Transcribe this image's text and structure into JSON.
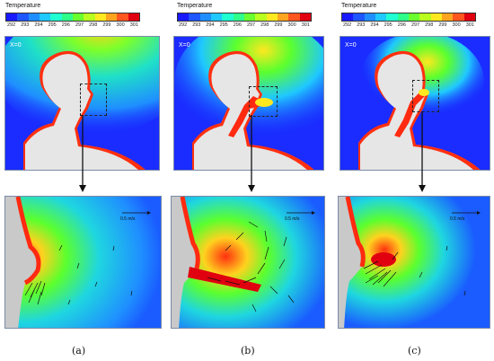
{
  "legend": {
    "title": "Temperature",
    "ticks": [
      "292",
      "293",
      "294",
      "295",
      "296",
      "297",
      "298",
      "299",
      "300",
      "301"
    ],
    "colors": [
      "#1a1aff",
      "#1e56ff",
      "#1f8fff",
      "#1fc8ff",
      "#1fffd2",
      "#2eff8a",
      "#6aff2e",
      "#b9ff1f",
      "#ffe81f",
      "#ffa41f",
      "#ff551f",
      "#e0000f"
    ]
  },
  "x_label": "X=0",
  "scale_label": "0.5 m/s",
  "captions": [
    "(a)",
    "(b)",
    "(c)"
  ],
  "colors": {
    "cold": "#1a2cff",
    "warm": "#ff2a10",
    "mid": "#29e0c8",
    "head": "#e6e6e6",
    "body": "#d9d9d9"
  }
}
